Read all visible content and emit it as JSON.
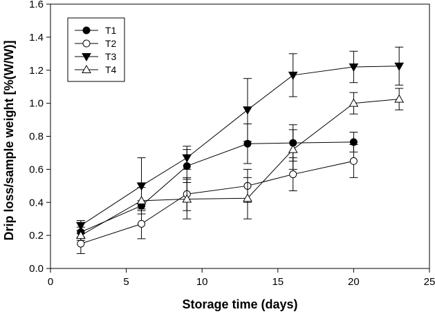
{
  "chart_data": {
    "type": "line",
    "xlabel": "Storage time (days)",
    "ylabel": "Drip loss/sample weight [%(W/W)]",
    "xlim": [
      0,
      25
    ],
    "ylim": [
      0.0,
      1.6
    ],
    "xticks": [
      0,
      5,
      10,
      15,
      20,
      25
    ],
    "xtick_labels": [
      "0",
      "5",
      "10",
      "15",
      "20",
      "25"
    ],
    "yticks": [
      0.0,
      0.2,
      0.4,
      0.6,
      0.8,
      1.0,
      1.2,
      1.4,
      1.6
    ],
    "ytick_labels": [
      "0.0",
      "0.2",
      "0.4",
      "0.6",
      "0.8",
      "1.0",
      "1.2",
      "1.4",
      "1.6"
    ],
    "grid": false,
    "legend_position": "top-left",
    "series": [
      {
        "name": "T1",
        "marker": "filled-circle",
        "x": [
          2,
          6,
          9,
          13,
          16,
          20
        ],
        "y": [
          0.22,
          0.38,
          0.62,
          0.755,
          0.76,
          0.765
        ],
        "err": [
          0.03,
          0.03,
          0.1,
          0.12,
          0.11,
          0.06
        ]
      },
      {
        "name": "T2",
        "marker": "open-circle",
        "x": [
          2,
          6,
          9,
          13,
          16,
          20
        ],
        "y": [
          0.15,
          0.27,
          0.45,
          0.5,
          0.57,
          0.65
        ],
        "err": [
          0.06,
          0.09,
          0.1,
          0.1,
          0.1,
          0.1
        ]
      },
      {
        "name": "T3",
        "marker": "filled-triangle-down",
        "x": [
          2,
          6,
          9,
          13,
          16,
          20,
          23
        ],
        "y": [
          0.26,
          0.5,
          0.67,
          0.96,
          1.17,
          1.22,
          1.225
        ],
        "err": [
          0.03,
          0.17,
          0.07,
          0.19,
          0.13,
          0.095,
          0.115
        ]
      },
      {
        "name": "T4",
        "marker": "open-triangle-up",
        "x": [
          2,
          6,
          9,
          13,
          16,
          20,
          23
        ],
        "y": [
          0.2,
          0.41,
          0.42,
          0.425,
          0.72,
          1.0,
          1.025
        ],
        "err": [
          0.03,
          0.08,
          0.12,
          0.125,
          0.12,
          0.065,
          0.065
        ]
      }
    ]
  }
}
